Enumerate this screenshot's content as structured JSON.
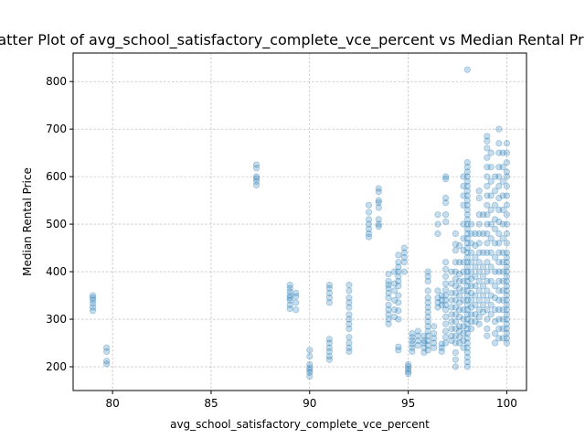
{
  "chart_data": {
    "type": "scatter",
    "title": "Scatter Plot of avg_school_satisfactory_complete_vce_percent vs Median Rental Price",
    "xlabel": "avg_school_satisfactory_complete_vce_percent",
    "ylabel": "Median Rental Price",
    "xlim": [
      78,
      101
    ],
    "ylim": [
      150,
      860
    ],
    "xticks": [
      "80",
      "85",
      "90",
      "95",
      "100"
    ],
    "yticks": [
      "200",
      "300",
      "400",
      "500",
      "600",
      "700",
      "800"
    ],
    "grid": true,
    "marker_color": "#1f77b4",
    "marker_alpha": 0.25,
    "points": [
      [
        79,
        350
      ],
      [
        79,
        345
      ],
      [
        79,
        340
      ],
      [
        79,
        333
      ],
      [
        79,
        325
      ],
      [
        79,
        318
      ],
      [
        79.7,
        240
      ],
      [
        79.7,
        232
      ],
      [
        79.7,
        212
      ],
      [
        79.7,
        206
      ],
      [
        87.3,
        625
      ],
      [
        87.3,
        618
      ],
      [
        87.3,
        600
      ],
      [
        87.3,
        596
      ],
      [
        87.3,
        590
      ],
      [
        87.3,
        582
      ],
      [
        89,
        372
      ],
      [
        89,
        365
      ],
      [
        89,
        358
      ],
      [
        89,
        350
      ],
      [
        89,
        345
      ],
      [
        89,
        340
      ],
      [
        89,
        330
      ],
      [
        89,
        322
      ],
      [
        89.3,
        355
      ],
      [
        89.3,
        348
      ],
      [
        89.3,
        335
      ],
      [
        89.3,
        320
      ],
      [
        90,
        235
      ],
      [
        90,
        222
      ],
      [
        90,
        205
      ],
      [
        90,
        198
      ],
      [
        90,
        193
      ],
      [
        90,
        188
      ],
      [
        90,
        180
      ],
      [
        91,
        372
      ],
      [
        91,
        365
      ],
      [
        91,
        355
      ],
      [
        91,
        345
      ],
      [
        91,
        335
      ],
      [
        91,
        258
      ],
      [
        91,
        250
      ],
      [
        91,
        240
      ],
      [
        91,
        232
      ],
      [
        91,
        222
      ],
      [
        91,
        215
      ],
      [
        92,
        372
      ],
      [
        92,
        360
      ],
      [
        92,
        345
      ],
      [
        92,
        335
      ],
      [
        92,
        325
      ],
      [
        92,
        310
      ],
      [
        92,
        300
      ],
      [
        92,
        290
      ],
      [
        92,
        280
      ],
      [
        92,
        262
      ],
      [
        92,
        250
      ],
      [
        92,
        240
      ],
      [
        92,
        232
      ],
      [
        93,
        540
      ],
      [
        93,
        525
      ],
      [
        93,
        510
      ],
      [
        93,
        500
      ],
      [
        93,
        490
      ],
      [
        93,
        480
      ],
      [
        93,
        473
      ],
      [
        93.5,
        575
      ],
      [
        93.5,
        568
      ],
      [
        93.5,
        550
      ],
      [
        93.5,
        545
      ],
      [
        93.5,
        535
      ],
      [
        93.5,
        510
      ],
      [
        93.5,
        500
      ],
      [
        93.5,
        495
      ],
      [
        94,
        395
      ],
      [
        94,
        380
      ],
      [
        94,
        372
      ],
      [
        94,
        365
      ],
      [
        94,
        355
      ],
      [
        94,
        345
      ],
      [
        94,
        330
      ],
      [
        94,
        320
      ],
      [
        94,
        310
      ],
      [
        94,
        300
      ],
      [
        94,
        290
      ],
      [
        94.3,
        400
      ],
      [
        94.3,
        375
      ],
      [
        94.3,
        360
      ],
      [
        94.3,
        340
      ],
      [
        94.3,
        320
      ],
      [
        94.3,
        305
      ],
      [
        94.5,
        435
      ],
      [
        94.5,
        420
      ],
      [
        94.5,
        410
      ],
      [
        94.5,
        400
      ],
      [
        94.5,
        390
      ],
      [
        94.5,
        380
      ],
      [
        94.5,
        370
      ],
      [
        94.5,
        350
      ],
      [
        94.5,
        335
      ],
      [
        94.5,
        318
      ],
      [
        94.5,
        300
      ],
      [
        94.5,
        242
      ],
      [
        94.5,
        235
      ],
      [
        94.8,
        450
      ],
      [
        94.8,
        440
      ],
      [
        94.8,
        430
      ],
      [
        94.8,
        420
      ],
      [
        94.8,
        400
      ],
      [
        95,
        205
      ],
      [
        95,
        200
      ],
      [
        95,
        195
      ],
      [
        95,
        190
      ],
      [
        95,
        185
      ],
      [
        95.2,
        270
      ],
      [
        95.2,
        262
      ],
      [
        95.2,
        255
      ],
      [
        95.2,
        248
      ],
      [
        95.2,
        240
      ],
      [
        95.2,
        232
      ],
      [
        95.5,
        275
      ],
      [
        95.5,
        265
      ],
      [
        95.5,
        255
      ],
      [
        95.5,
        245
      ],
      [
        95.8,
        265
      ],
      [
        95.8,
        255
      ],
      [
        95.8,
        250
      ],
      [
        95.8,
        240
      ],
      [
        95.8,
        230
      ],
      [
        96,
        400
      ],
      [
        96,
        390
      ],
      [
        96,
        380
      ],
      [
        96,
        360
      ],
      [
        96,
        345
      ],
      [
        96,
        335
      ],
      [
        96,
        325
      ],
      [
        96,
        315
      ],
      [
        96,
        305
      ],
      [
        96,
        295
      ],
      [
        96,
        285
      ],
      [
        96,
        275
      ],
      [
        96,
        265
      ],
      [
        96,
        255
      ],
      [
        96,
        245
      ],
      [
        96,
        235
      ],
      [
        96.3,
        285
      ],
      [
        96.3,
        270
      ],
      [
        96.3,
        260
      ],
      [
        96.3,
        250
      ],
      [
        96.3,
        240
      ],
      [
        96.5,
        520
      ],
      [
        96.5,
        500
      ],
      [
        96.5,
        480
      ],
      [
        96.5,
        360
      ],
      [
        96.5,
        345
      ],
      [
        96.5,
        335
      ],
      [
        96.5,
        325
      ],
      [
        96.7,
        350
      ],
      [
        96.7,
        340
      ],
      [
        96.7,
        330
      ],
      [
        96.7,
        248
      ],
      [
        96.7,
        240
      ],
      [
        96.7,
        232
      ],
      [
        96.9,
        600
      ],
      [
        96.9,
        595
      ],
      [
        96.9,
        555
      ],
      [
        96.9,
        545
      ],
      [
        96.9,
        520
      ],
      [
        96.9,
        505
      ],
      [
        96.9,
        420
      ],
      [
        96.9,
        405
      ],
      [
        96.9,
        390
      ],
      [
        96.9,
        375
      ],
      [
        96.9,
        362
      ],
      [
        96.9,
        350
      ],
      [
        96.9,
        340
      ],
      [
        96.9,
        330
      ],
      [
        96.9,
        320
      ],
      [
        96.9,
        305
      ],
      [
        96.9,
        290
      ],
      [
        96.9,
        275
      ],
      [
        96.9,
        262
      ],
      [
        96.9,
        250
      ],
      [
        97.2,
        400
      ],
      [
        97.2,
        375
      ],
      [
        97.2,
        355
      ],
      [
        97.2,
        340
      ],
      [
        97.2,
        325
      ],
      [
        97.2,
        310
      ],
      [
        97.2,
        295
      ],
      [
        97.2,
        280
      ],
      [
        97.2,
        265
      ],
      [
        97.2,
        255
      ],
      [
        97.4,
        480
      ],
      [
        97.4,
        458
      ],
      [
        97.4,
        445
      ],
      [
        97.4,
        420
      ],
      [
        97.4,
        400
      ],
      [
        97.4,
        385
      ],
      [
        97.4,
        370
      ],
      [
        97.4,
        355
      ],
      [
        97.4,
        340
      ],
      [
        97.4,
        325
      ],
      [
        97.4,
        310
      ],
      [
        97.4,
        295
      ],
      [
        97.4,
        280
      ],
      [
        97.4,
        265
      ],
      [
        97.4,
        250
      ],
      [
        97.4,
        230
      ],
      [
        97.4,
        215
      ],
      [
        97.4,
        200
      ],
      [
        97.6,
        455
      ],
      [
        97.6,
        420
      ],
      [
        97.6,
        395
      ],
      [
        97.6,
        380
      ],
      [
        97.6,
        365
      ],
      [
        97.6,
        350
      ],
      [
        97.6,
        335
      ],
      [
        97.6,
        320
      ],
      [
        97.6,
        305
      ],
      [
        97.6,
        285
      ],
      [
        97.6,
        275
      ],
      [
        97.6,
        262
      ],
      [
        97.6,
        250
      ],
      [
        97.8,
        600
      ],
      [
        97.8,
        580
      ],
      [
        97.8,
        560
      ],
      [
        97.8,
        540
      ],
      [
        97.8,
        500
      ],
      [
        97.8,
        470
      ],
      [
        97.8,
        445
      ],
      [
        97.8,
        420
      ],
      [
        97.8,
        400
      ],
      [
        97.8,
        380
      ],
      [
        97.8,
        360
      ],
      [
        97.8,
        340
      ],
      [
        97.8,
        320
      ],
      [
        97.8,
        300
      ],
      [
        97.8,
        285
      ],
      [
        97.8,
        270
      ],
      [
        97.8,
        255
      ],
      [
        97.8,
        240
      ],
      [
        98,
        825
      ],
      [
        98,
        630
      ],
      [
        98,
        620
      ],
      [
        98,
        610
      ],
      [
        98,
        600
      ],
      [
        98,
        590
      ],
      [
        98,
        580
      ],
      [
        98,
        570
      ],
      [
        98,
        560
      ],
      [
        98,
        550
      ],
      [
        98,
        540
      ],
      [
        98,
        530
      ],
      [
        98,
        520
      ],
      [
        98,
        510
      ],
      [
        98,
        500
      ],
      [
        98,
        490
      ],
      [
        98,
        480
      ],
      [
        98,
        470
      ],
      [
        98,
        460
      ],
      [
        98,
        450
      ],
      [
        98,
        440
      ],
      [
        98,
        430
      ],
      [
        98,
        420
      ],
      [
        98,
        410
      ],
      [
        98,
        400
      ],
      [
        98,
        390
      ],
      [
        98,
        380
      ],
      [
        98,
        370
      ],
      [
        98,
        360
      ],
      [
        98,
        350
      ],
      [
        98,
        340
      ],
      [
        98,
        330
      ],
      [
        98,
        320
      ],
      [
        98,
        310
      ],
      [
        98,
        300
      ],
      [
        98,
        290
      ],
      [
        98,
        280
      ],
      [
        98,
        270
      ],
      [
        98,
        260
      ],
      [
        98,
        250
      ],
      [
        98,
        240
      ],
      [
        98,
        230
      ],
      [
        98,
        220
      ],
      [
        98,
        210
      ],
      [
        98,
        200
      ],
      [
        98.2,
        500
      ],
      [
        98.2,
        480
      ],
      [
        98.2,
        460
      ],
      [
        98.2,
        440
      ],
      [
        98.2,
        420
      ],
      [
        98.2,
        400
      ],
      [
        98.2,
        385
      ],
      [
        98.2,
        370
      ],
      [
        98.2,
        355
      ],
      [
        98.2,
        340
      ],
      [
        98.2,
        325
      ],
      [
        98.2,
        310
      ],
      [
        98.2,
        295
      ],
      [
        98.2,
        280
      ],
      [
        98.4,
        480
      ],
      [
        98.4,
        455
      ],
      [
        98.4,
        430
      ],
      [
        98.4,
        410
      ],
      [
        98.4,
        390
      ],
      [
        98.4,
        370
      ],
      [
        98.4,
        350
      ],
      [
        98.4,
        330
      ],
      [
        98.4,
        310
      ],
      [
        98.4,
        295
      ],
      [
        98.6,
        570
      ],
      [
        98.6,
        555
      ],
      [
        98.6,
        520
      ],
      [
        98.6,
        500
      ],
      [
        98.6,
        480
      ],
      [
        98.6,
        460
      ],
      [
        98.6,
        440
      ],
      [
        98.6,
        420
      ],
      [
        98.6,
        400
      ],
      [
        98.6,
        380
      ],
      [
        98.6,
        360
      ],
      [
        98.6,
        340
      ],
      [
        98.6,
        320
      ],
      [
        98.6,
        305
      ],
      [
        98.6,
        290
      ],
      [
        98.8,
        520
      ],
      [
        98.8,
        480
      ],
      [
        98.8,
        440
      ],
      [
        98.8,
        410
      ],
      [
        98.8,
        390
      ],
      [
        98.8,
        370
      ],
      [
        98.8,
        350
      ],
      [
        98.8,
        330
      ],
      [
        98.8,
        315
      ],
      [
        99,
        685
      ],
      [
        99,
        675
      ],
      [
        99,
        660
      ],
      [
        99,
        640
      ],
      [
        99,
        620
      ],
      [
        99,
        600
      ],
      [
        99,
        580
      ],
      [
        99,
        560
      ],
      [
        99,
        540
      ],
      [
        99,
        520
      ],
      [
        99,
        500
      ],
      [
        99,
        480
      ],
      [
        99,
        460
      ],
      [
        99,
        440
      ],
      [
        99,
        420
      ],
      [
        99,
        400
      ],
      [
        99,
        380
      ],
      [
        99,
        360
      ],
      [
        99,
        340
      ],
      [
        99,
        320
      ],
      [
        99,
        300
      ],
      [
        99,
        280
      ],
      [
        99,
        265
      ],
      [
        99.2,
        650
      ],
      [
        99.2,
        620
      ],
      [
        99.2,
        590
      ],
      [
        99.2,
        560
      ],
      [
        99.2,
        530
      ],
      [
        99.2,
        500
      ],
      [
        99.2,
        470
      ],
      [
        99.2,
        440
      ],
      [
        99.2,
        410
      ],
      [
        99.2,
        380
      ],
      [
        99.2,
        350
      ],
      [
        99.2,
        330
      ],
      [
        99.2,
        310
      ],
      [
        99.4,
        600
      ],
      [
        99.4,
        570
      ],
      [
        99.4,
        540
      ],
      [
        99.4,
        510
      ],
      [
        99.4,
        490
      ],
      [
        99.4,
        460
      ],
      [
        99.4,
        430
      ],
      [
        99.4,
        400
      ],
      [
        99.4,
        370
      ],
      [
        99.4,
        345
      ],
      [
        99.4,
        320
      ],
      [
        99.4,
        295
      ],
      [
        99.4,
        270
      ],
      [
        99.4,
        250
      ],
      [
        99.6,
        700
      ],
      [
        99.6,
        670
      ],
      [
        99.6,
        650
      ],
      [
        99.6,
        620
      ],
      [
        99.6,
        600
      ],
      [
        99.6,
        580
      ],
      [
        99.6,
        555
      ],
      [
        99.6,
        530
      ],
      [
        99.6,
        505
      ],
      [
        99.6,
        480
      ],
      [
        99.6,
        460
      ],
      [
        99.6,
        440
      ],
      [
        99.6,
        420
      ],
      [
        99.6,
        400
      ],
      [
        99.6,
        380
      ],
      [
        99.6,
        360
      ],
      [
        99.6,
        340
      ],
      [
        99.6,
        320
      ],
      [
        99.6,
        300
      ],
      [
        99.6,
        280
      ],
      [
        99.6,
        260
      ],
      [
        99.8,
        650
      ],
      [
        99.8,
        620
      ],
      [
        99.8,
        590
      ],
      [
        99.8,
        560
      ],
      [
        99.8,
        530
      ],
      [
        99.8,
        500
      ],
      [
        99.8,
        470
      ],
      [
        99.8,
        440
      ],
      [
        99.8,
        420
      ],
      [
        99.8,
        400
      ],
      [
        99.8,
        380
      ],
      [
        99.8,
        360
      ],
      [
        99.8,
        340
      ],
      [
        99.8,
        320
      ],
      [
        99.8,
        300
      ],
      [
        99.8,
        280
      ],
      [
        99.8,
        260
      ],
      [
        100,
        670
      ],
      [
        100,
        650
      ],
      [
        100,
        630
      ],
      [
        100,
        610
      ],
      [
        100,
        600
      ],
      [
        100,
        580
      ],
      [
        100,
        560
      ],
      [
        100,
        540
      ],
      [
        100,
        520
      ],
      [
        100,
        500
      ],
      [
        100,
        480
      ],
      [
        100,
        460
      ],
      [
        100,
        440
      ],
      [
        100,
        430
      ],
      [
        100,
        420
      ],
      [
        100,
        410
      ],
      [
        100,
        400
      ],
      [
        100,
        390
      ],
      [
        100,
        380
      ],
      [
        100,
        370
      ],
      [
        100,
        360
      ],
      [
        100,
        350
      ],
      [
        100,
        340
      ],
      [
        100,
        330
      ],
      [
        100,
        320
      ],
      [
        100,
        310
      ],
      [
        100,
        300
      ],
      [
        100,
        290
      ],
      [
        100,
        280
      ],
      [
        100,
        270
      ],
      [
        100,
        260
      ],
      [
        100,
        250
      ]
    ]
  }
}
